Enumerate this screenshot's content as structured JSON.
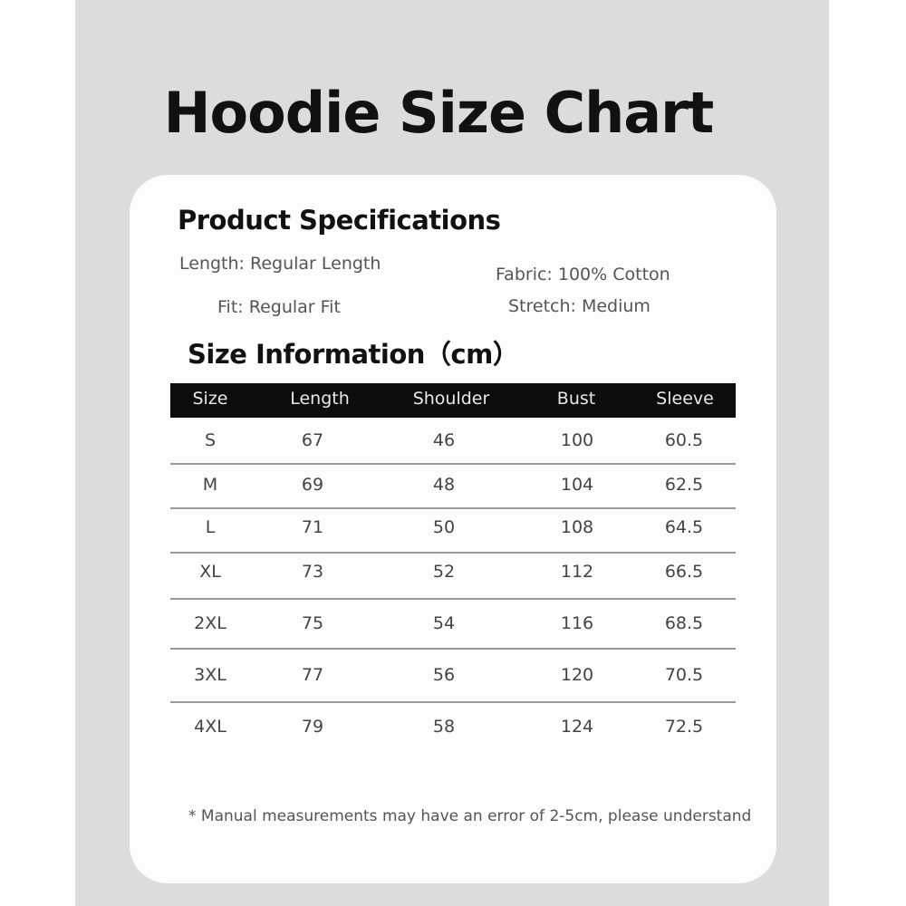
{
  "title": "Hoodie Size Chart",
  "specs": {
    "heading": "Product Specifications",
    "length": "Length: Regular Length",
    "fabric": "Fabric: 100% Cotton",
    "fit": "Fit: Regular Fit",
    "stretch": "Stretch: Medium"
  },
  "size_info": {
    "heading": "Size Information（cm）",
    "columns": [
      "Size",
      "Length",
      "Shoulder",
      "Bust",
      "Sleeve"
    ],
    "rows": [
      [
        "S",
        "67",
        "46",
        "100",
        "60.5"
      ],
      [
        "M",
        "69",
        "48",
        "104",
        "62.5"
      ],
      [
        "L",
        "71",
        "50",
        "108",
        "64.5"
      ],
      [
        "XL",
        "73",
        "52",
        "112",
        "66.5"
      ],
      [
        "2XL",
        "75",
        "54",
        "116",
        "68.5"
      ],
      [
        "3XL",
        "77",
        "56",
        "120",
        "70.5"
      ],
      [
        "4XL",
        "79",
        "58",
        "124",
        "72.5"
      ]
    ]
  },
  "note": "* Manual measurements may have an error of 2-5cm, please understand"
}
